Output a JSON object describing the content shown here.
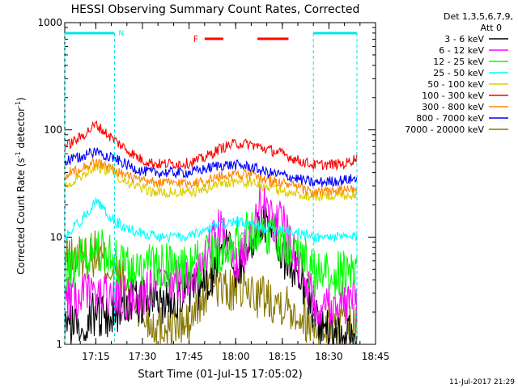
{
  "chart_data": {
    "type": "line",
    "title": "HESSI Observing Summary Count Rates, Corrected",
    "xlabel": "Start Time (01-Jul-15 17:05:02)",
    "ylabel_main": "Corrected Count Rate (s",
    "ylabel_sup1": "-1",
    "ylabel_mid": " detector",
    "ylabel_sup2": "-1",
    "ylabel_end": ")",
    "y_scale": "log",
    "ylim": [
      1,
      1000
    ],
    "y_ticks": [
      {
        "value": 1,
        "label": "1"
      },
      {
        "value": 10,
        "label": "10"
      },
      {
        "value": 100,
        "label": "100"
      },
      {
        "value": 1000,
        "label": "1000"
      }
    ],
    "xlim": [
      0,
      100
    ],
    "x_ticks": [
      {
        "minutes": 10,
        "label": "17:15"
      },
      {
        "minutes": 25,
        "label": "17:30"
      },
      {
        "minutes": 40,
        "label": "17:45"
      },
      {
        "minutes": 55,
        "label": "18:00"
      },
      {
        "minutes": 70,
        "label": "18:15"
      },
      {
        "minutes": 85,
        "label": "18:30"
      },
      {
        "minutes": 100,
        "label": "18:45"
      }
    ],
    "legend_header": [
      "Det 1,3,5,6,7,9,",
      "Att 0"
    ],
    "legend_placement": "right",
    "series": [
      {
        "name": "3 - 6 keV",
        "color": "#000000",
        "values": [
          [
            0,
            1.5
          ],
          [
            5,
            1.5
          ],
          [
            10,
            2.0
          ],
          [
            15,
            1.8
          ],
          [
            20,
            2.5
          ],
          [
            30,
            2.5
          ],
          [
            40,
            3.0
          ],
          [
            45,
            3.5
          ],
          [
            48,
            5.0
          ],
          [
            50,
            8.0
          ],
          [
            52,
            10.0
          ],
          [
            54,
            6.0
          ],
          [
            56,
            5.0
          ],
          [
            60,
            8.0
          ],
          [
            62,
            12.0
          ],
          [
            64,
            15.0
          ],
          [
            66,
            13.0
          ],
          [
            68,
            9.0
          ],
          [
            70,
            7.0
          ],
          [
            73,
            5.0
          ],
          [
            76,
            4.5
          ],
          [
            80,
            2.0
          ],
          [
            85,
            1.2
          ],
          [
            94,
            1.2
          ]
        ]
      },
      {
        "name": "6 - 12 keV",
        "color": "#ff00ff",
        "values": [
          [
            0,
            2.5
          ],
          [
            10,
            3.0
          ],
          [
            20,
            2.5
          ],
          [
            30,
            3.5
          ],
          [
            40,
            4.0
          ],
          [
            45,
            5.5
          ],
          [
            48,
            10.0
          ],
          [
            50,
            12.0
          ],
          [
            52,
            8.0
          ],
          [
            54,
            5.5
          ],
          [
            56,
            6.0
          ],
          [
            58,
            8.0
          ],
          [
            62,
            17.0
          ],
          [
            64,
            22.0
          ],
          [
            66,
            16.0
          ],
          [
            68,
            13.0
          ],
          [
            70,
            15.0
          ],
          [
            72,
            10.0
          ],
          [
            74,
            7.0
          ],
          [
            76,
            5.0
          ],
          [
            80,
            2.5
          ],
          [
            94,
            2.5
          ]
        ]
      },
      {
        "name": "12 - 25 keV",
        "color": "#00ff00",
        "values": [
          [
            0,
            5.0
          ],
          [
            5,
            6.0
          ],
          [
            10,
            8.0
          ],
          [
            15,
            6.5
          ],
          [
            20,
            5.0
          ],
          [
            30,
            5.5
          ],
          [
            40,
            5.0
          ],
          [
            44,
            6.0
          ],
          [
            48,
            7.0
          ],
          [
            52,
            8.0
          ],
          [
            56,
            10.0
          ],
          [
            60,
            11.0
          ],
          [
            64,
            12.0
          ],
          [
            68,
            10.0
          ],
          [
            72,
            9.0
          ],
          [
            76,
            7.0
          ],
          [
            80,
            4.5
          ],
          [
            94,
            4.5
          ]
        ]
      },
      {
        "name": "25 - 50 keV",
        "color": "#00ffff",
        "values": [
          [
            0,
            10.0
          ],
          [
            5,
            14.0
          ],
          [
            10,
            22.0
          ],
          [
            15,
            15.0
          ],
          [
            20,
            12.0
          ],
          [
            30,
            10.0
          ],
          [
            40,
            10.0
          ],
          [
            50,
            13.0
          ],
          [
            55,
            14.0
          ],
          [
            60,
            13.0
          ],
          [
            65,
            12.0
          ],
          [
            70,
            12.0
          ],
          [
            75,
            11.0
          ],
          [
            80,
            10.0
          ],
          [
            94,
            10.0
          ]
        ]
      },
      {
        "name": "50 - 100 keV",
        "color": "#ddcc00",
        "values": [
          [
            0,
            30.0
          ],
          [
            5,
            37.0
          ],
          [
            10,
            46.0
          ],
          [
            15,
            40.0
          ],
          [
            20,
            33.0
          ],
          [
            25,
            28.0
          ],
          [
            30,
            26.0
          ],
          [
            40,
            26.0
          ],
          [
            45,
            28.0
          ],
          [
            50,
            32.0
          ],
          [
            55,
            33.0
          ],
          [
            60,
            32.0
          ],
          [
            65,
            29.0
          ],
          [
            70,
            27.0
          ],
          [
            75,
            25.0
          ],
          [
            80,
            24.0
          ],
          [
            94,
            25.0
          ]
        ]
      },
      {
        "name": "100 - 300 keV",
        "color": "#ff0000",
        "values": [
          [
            0,
            70.0
          ],
          [
            5,
            85.0
          ],
          [
            10,
            112.0
          ],
          [
            15,
            85.0
          ],
          [
            20,
            65.0
          ],
          [
            25,
            52.0
          ],
          [
            30,
            48.0
          ],
          [
            40,
            49.0
          ],
          [
            45,
            55.0
          ],
          [
            50,
            67.0
          ],
          [
            55,
            75.0
          ],
          [
            60,
            73.0
          ],
          [
            65,
            66.0
          ],
          [
            70,
            60.0
          ],
          [
            75,
            52.0
          ],
          [
            80,
            47.0
          ],
          [
            90,
            48.0
          ],
          [
            94,
            55.0
          ]
        ]
      },
      {
        "name": "300 - 800 keV",
        "color": "#ff8800",
        "values": [
          [
            0,
            38.0
          ],
          [
            5,
            44.0
          ],
          [
            10,
            50.0
          ],
          [
            15,
            44.0
          ],
          [
            20,
            37.0
          ],
          [
            25,
            33.0
          ],
          [
            30,
            32.0
          ],
          [
            40,
            32.0
          ],
          [
            45,
            33.0
          ],
          [
            50,
            37.0
          ],
          [
            55,
            39.0
          ],
          [
            60,
            38.0
          ],
          [
            65,
            34.0
          ],
          [
            70,
            32.0
          ],
          [
            75,
            29.0
          ],
          [
            80,
            26.0
          ],
          [
            94,
            28.0
          ]
        ]
      },
      {
        "name": "800 - 7000 keV",
        "color": "#0000ff",
        "values": [
          [
            0,
            50.0
          ],
          [
            5,
            56.0
          ],
          [
            10,
            63.0
          ],
          [
            15,
            56.0
          ],
          [
            20,
            47.0
          ],
          [
            25,
            41.0
          ],
          [
            30,
            40.0
          ],
          [
            40,
            40.0
          ],
          [
            45,
            43.0
          ],
          [
            50,
            47.0
          ],
          [
            55,
            47.0
          ],
          [
            60,
            45.0
          ],
          [
            65,
            40.0
          ],
          [
            70,
            38.0
          ],
          [
            75,
            35.0
          ],
          [
            80,
            32.0
          ],
          [
            94,
            35.0
          ]
        ]
      },
      {
        "name": "7000 - 20000 keV",
        "color": "#887700",
        "values": [
          [
            0,
            6.0
          ],
          [
            10,
            7.0
          ],
          [
            15,
            5.0
          ],
          [
            20,
            3.5
          ],
          [
            25,
            1.8
          ],
          [
            30,
            1.5
          ],
          [
            40,
            1.5
          ],
          [
            44,
            2.5
          ],
          [
            48,
            4.0
          ],
          [
            52,
            3.0
          ],
          [
            56,
            3.5
          ],
          [
            60,
            3.0
          ],
          [
            70,
            2.5
          ],
          [
            75,
            2.0
          ],
          [
            80,
            1.5
          ],
          [
            94,
            1.5
          ]
        ]
      }
    ],
    "night_bars": [
      {
        "start": 0,
        "end": 16,
        "label": "N"
      },
      {
        "start": 80,
        "end": 94,
        "label": ""
      }
    ],
    "night_color": "#00e5e5",
    "flare_marker": {
      "label": "F",
      "color": "#ff0000",
      "segments": [
        [
          45,
          51
        ],
        [
          62,
          72
        ]
      ]
    },
    "footer_date": "11-Jul-2017 21:29"
  }
}
